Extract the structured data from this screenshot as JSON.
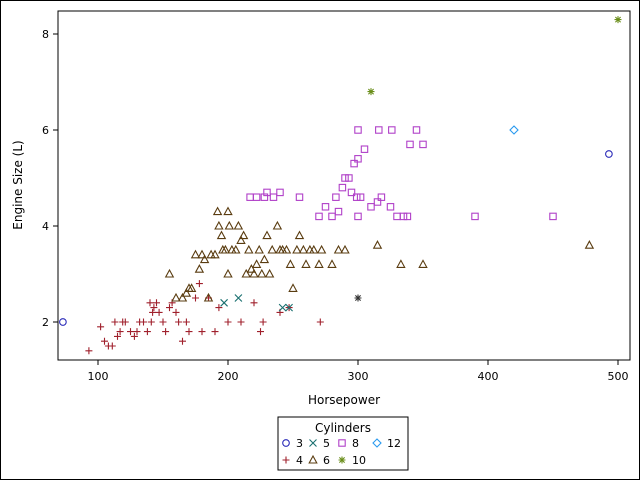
{
  "chart_data": {
    "type": "scatter",
    "xlabel": "Horsepower",
    "ylabel": "Engine Size (L)",
    "xlim": [
      70,
      505
    ],
    "ylim": [
      1.2,
      8.6
    ],
    "xticks": [
      100,
      200,
      300,
      400,
      500
    ],
    "yticks": [
      2,
      4,
      6,
      8
    ],
    "legend_title": "Cylinders",
    "legend_position": "bottom-center",
    "series": [
      {
        "name": "3",
        "marker": "circle",
        "color": "#2a2ab8",
        "points": [
          [
            73,
            2.0
          ],
          [
            493,
            5.5
          ]
        ]
      },
      {
        "name": "4",
        "marker": "plus",
        "color": "#a0202c",
        "points": [
          [
            93,
            1.4
          ],
          [
            102,
            1.9
          ],
          [
            105,
            1.6
          ],
          [
            108,
            1.5
          ],
          [
            111,
            1.5
          ],
          [
            113,
            2.0
          ],
          [
            115,
            1.7
          ],
          [
            117,
            1.8
          ],
          [
            119,
            2.0
          ],
          [
            121,
            2.0
          ],
          [
            125,
            1.8
          ],
          [
            128,
            1.7
          ],
          [
            130,
            1.8
          ],
          [
            132,
            2.0
          ],
          [
            135,
            2.0
          ],
          [
            138,
            1.8
          ],
          [
            140,
            2.4
          ],
          [
            141,
            2.0
          ],
          [
            142,
            2.2
          ],
          [
            143,
            2.3
          ],
          [
            145,
            2.4
          ],
          [
            147,
            2.2
          ],
          [
            150,
            2.0
          ],
          [
            152,
            1.8
          ],
          [
            155,
            2.3
          ],
          [
            157,
            2.4
          ],
          [
            160,
            2.2
          ],
          [
            162,
            2.0
          ],
          [
            165,
            1.6
          ],
          [
            168,
            2.0
          ],
          [
            170,
            1.8
          ],
          [
            175,
            2.5
          ],
          [
            178,
            2.8
          ],
          [
            180,
            1.8
          ],
          [
            185,
            2.5
          ],
          [
            190,
            1.8
          ],
          [
            193,
            2.3
          ],
          [
            200,
            2.0
          ],
          [
            210,
            2.0
          ],
          [
            220,
            2.4
          ],
          [
            225,
            1.8
          ],
          [
            227,
            2.0
          ],
          [
            240,
            2.2
          ],
          [
            247,
            2.3
          ],
          [
            271,
            2.0
          ]
        ]
      },
      {
        "name": "5",
        "marker": "x",
        "color": "#1a7070",
        "points": [
          [
            197,
            2.4
          ],
          [
            208,
            2.5
          ],
          [
            242,
            2.3
          ],
          [
            247,
            2.3
          ]
        ]
      },
      {
        "name": "6",
        "marker": "triangle",
        "color": "#5a3c10",
        "points": [
          [
            155,
            3.0
          ],
          [
            160,
            2.5
          ],
          [
            165,
            2.5
          ],
          [
            168,
            2.6
          ],
          [
            170,
            2.7
          ],
          [
            172,
            2.7
          ],
          [
            175,
            3.4
          ],
          [
            178,
            3.1
          ],
          [
            180,
            3.4
          ],
          [
            182,
            3.3
          ],
          [
            185,
            2.5
          ],
          [
            187,
            3.4
          ],
          [
            190,
            3.4
          ],
          [
            192,
            4.3
          ],
          [
            193,
            4.0
          ],
          [
            195,
            3.8
          ],
          [
            196,
            3.5
          ],
          [
            198,
            3.5
          ],
          [
            200,
            4.3
          ],
          [
            200,
            3.0
          ],
          [
            201,
            4.0
          ],
          [
            203,
            3.5
          ],
          [
            206,
            3.5
          ],
          [
            208,
            4.0
          ],
          [
            210,
            3.7
          ],
          [
            212,
            3.8
          ],
          [
            214,
            3.0
          ],
          [
            216,
            3.5
          ],
          [
            218,
            3.1
          ],
          [
            220,
            3.0
          ],
          [
            222,
            3.2
          ],
          [
            224,
            3.5
          ],
          [
            226,
            3.0
          ],
          [
            228,
            3.3
          ],
          [
            230,
            3.8
          ],
          [
            232,
            3.0
          ],
          [
            234,
            3.5
          ],
          [
            238,
            4.0
          ],
          [
            240,
            3.5
          ],
          [
            242,
            3.5
          ],
          [
            245,
            3.5
          ],
          [
            248,
            3.2
          ],
          [
            250,
            2.7
          ],
          [
            253,
            3.5
          ],
          [
            255,
            3.8
          ],
          [
            258,
            3.5
          ],
          [
            260,
            3.2
          ],
          [
            263,
            3.5
          ],
          [
            266,
            3.5
          ],
          [
            270,
            3.2
          ],
          [
            272,
            3.5
          ],
          [
            280,
            3.2
          ],
          [
            285,
            3.5
          ],
          [
            290,
            3.5
          ],
          [
            315,
            3.6
          ],
          [
            333,
            3.2
          ],
          [
            350,
            3.2
          ],
          [
            478,
            3.6
          ]
        ]
      },
      {
        "name": "8",
        "marker": "square",
        "color": "#b040c8",
        "points": [
          [
            217,
            4.6
          ],
          [
            222,
            4.6
          ],
          [
            228,
            4.6
          ],
          [
            230,
            4.7
          ],
          [
            235,
            4.6
          ],
          [
            240,
            4.7
          ],
          [
            255,
            4.6
          ],
          [
            270,
            4.2
          ],
          [
            275,
            4.4
          ],
          [
            280,
            4.2
          ],
          [
            283,
            4.6
          ],
          [
            288,
            4.8
          ],
          [
            290,
            5.0
          ],
          [
            293,
            5.0
          ],
          [
            295,
            4.7
          ],
          [
            297,
            5.3
          ],
          [
            299,
            4.6
          ],
          [
            300,
            5.4
          ],
          [
            300,
            6.0
          ],
          [
            302,
            4.6
          ],
          [
            305,
            5.6
          ],
          [
            315,
            4.5
          ],
          [
            316,
            6.0
          ],
          [
            318,
            4.6
          ],
          [
            325,
            4.4
          ],
          [
            326,
            6.0
          ],
          [
            330,
            4.2
          ],
          [
            335,
            4.2
          ],
          [
            338,
            4.2
          ],
          [
            340,
            5.7
          ],
          [
            345,
            6.0
          ],
          [
            350,
            5.7
          ],
          [
            390,
            4.2
          ],
          [
            450,
            4.2
          ],
          [
            300,
            4.2
          ],
          [
            310,
            4.4
          ],
          [
            285,
            4.3
          ]
        ]
      },
      {
        "name": "10",
        "marker": "star",
        "color": "#6a8e1a",
        "points": [
          [
            310,
            6.8
          ],
          [
            500,
            8.3
          ]
        ]
      },
      {
        "name": "12",
        "marker": "diamond",
        "color": "#2a9af0",
        "points": [
          [
            420,
            6.0
          ]
        ]
      },
      {
        "name": "",
        "marker": "asterisk",
        "color": "#333333",
        "legend": false,
        "points": [
          [
            300,
            2.5
          ]
        ]
      }
    ]
  }
}
